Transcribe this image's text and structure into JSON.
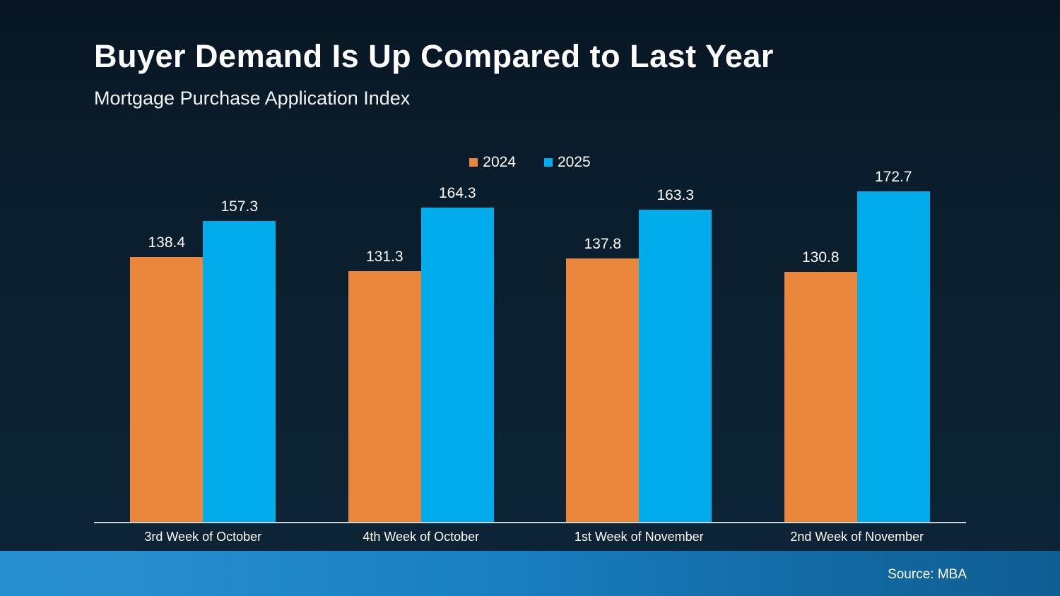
{
  "title": "Buyer Demand Is Up Compared to Last Year",
  "subtitle": "Mortgage Purchase Application Index",
  "source_label": "Source: MBA",
  "colors": {
    "orange_2024": "#ea873c",
    "blue_2025": "#00acec",
    "background_top": "#081623",
    "background_bottom": "#0d2436",
    "footer_band_left": "#1e8bcd",
    "footer_band_right": "#0f5e92",
    "axis_line": "#c9d3d9",
    "text": "#ffffff"
  },
  "legend": {
    "entries": [
      {
        "label": "2024",
        "color": "#ea873c"
      },
      {
        "label": "2025",
        "color": "#00acec"
      }
    ]
  },
  "chart_data": {
    "type": "bar",
    "title": "Buyer Demand Is Up Compared to Last Year",
    "subtitle": "Mortgage Purchase Application Index",
    "categories": [
      "3rd Week of October",
      "4th Week of October",
      "1st Week of November",
      "2nd Week of November"
    ],
    "series": [
      {
        "name": "2024",
        "color": "#ea873c",
        "values": [
          138.4,
          131.3,
          137.8,
          130.8
        ]
      },
      {
        "name": "2025",
        "color": "#00acec",
        "values": [
          157.3,
          164.3,
          163.3,
          172.7
        ]
      }
    ],
    "value_labels_shown": true,
    "legend_position": "top-center",
    "ylim": [
      0,
      180
    ],
    "grid": false,
    "source": "Source: MBA"
  }
}
